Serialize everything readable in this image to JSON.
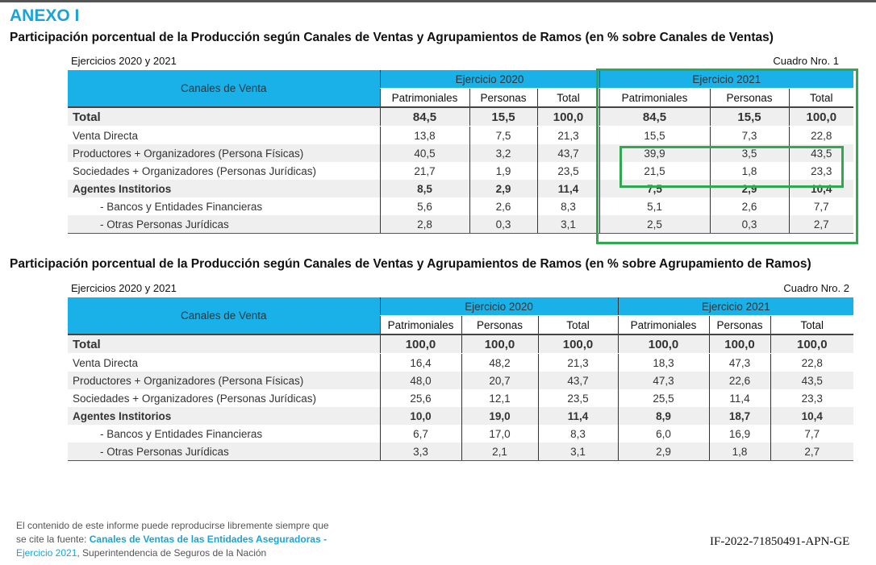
{
  "anexo": "ANEXO I",
  "table1": {
    "heading": "Participación porcentual de la Producción según Canales de Ventas y Agrupamientos de Ramos (en % sobre Canales de Ventas)",
    "ejercicios": "Ejercicios 2020 y 2021",
    "cuadro": "Cuadro Nro. 1",
    "col_label": "Canales de Venta",
    "group_2020": "Ejercicio 2020",
    "group_2021": "Ejercicio 2021",
    "sub_headers": [
      "Patrimoniales",
      "Personas",
      "Total"
    ],
    "rows": [
      {
        "label": "Total",
        "values": [
          "84,5",
          "15,5",
          "100,0",
          "84,5",
          "15,5",
          "100,0"
        ]
      },
      {
        "label": "Venta Directa",
        "values": [
          "13,8",
          "7,5",
          "21,3",
          "15,5",
          "7,3",
          "22,8"
        ]
      },
      {
        "label": "Productores + Organizadores (Persona Físicas)",
        "values": [
          "40,5",
          "3,2",
          "43,7",
          "39,9",
          "3,5",
          "43,5"
        ]
      },
      {
        "label": "Sociedades + Organizadores (Personas Jurídicas)",
        "values": [
          "21,7",
          "1,9",
          "23,5",
          "21,5",
          "1,8",
          "23,3"
        ]
      },
      {
        "label": "Agentes Institorios",
        "values": [
          "8,5",
          "2,9",
          "11,4",
          "7,5",
          "2,9",
          "10,4"
        ]
      },
      {
        "label": "- Bancos y Entidades Financieras",
        "values": [
          "5,6",
          "2,6",
          "8,3",
          "5,1",
          "2,6",
          "7,7"
        ]
      },
      {
        "label": "- Otras Personas Jurídicas",
        "values": [
          "2,8",
          "0,3",
          "3,1",
          "2,5",
          "0,3",
          "2,7"
        ]
      }
    ]
  },
  "table2": {
    "heading": "Participación porcentual de la Producción según Canales de Ventas y Agrupamientos de Ramos (en % sobre Agrupamiento de Ramos)",
    "ejercicios": "Ejercicios 2020 y 2021",
    "cuadro": "Cuadro Nro. 2",
    "col_label": "Canales de Venta",
    "group_2020": "Ejercicio 2020",
    "group_2021": "Ejercicio 2021",
    "sub_headers": [
      "Patrimoniales",
      "Personas",
      "Total"
    ],
    "rows": [
      {
        "label": "Total",
        "values": [
          "100,0",
          "100,0",
          "100,0",
          "100,0",
          "100,0",
          "100,0"
        ]
      },
      {
        "label": "Venta Directa",
        "values": [
          "16,4",
          "48,2",
          "21,3",
          "18,3",
          "47,3",
          "22,8"
        ]
      },
      {
        "label": "Productores + Organizadores (Persona Físicas)",
        "values": [
          "48,0",
          "20,7",
          "43,7",
          "47,3",
          "22,6",
          "43,5"
        ]
      },
      {
        "label": "Sociedades + Organizadores (Personas Jurídicas)",
        "values": [
          "25,6",
          "12,1",
          "23,5",
          "25,5",
          "11,4",
          "23,3"
        ]
      },
      {
        "label": "Agentes Institorios",
        "values": [
          "10,0",
          "19,0",
          "11,4",
          "8,9",
          "18,7",
          "10,4"
        ]
      },
      {
        "label": "- Bancos y Entidades Financieras",
        "values": [
          "6,7",
          "17,0",
          "8,3",
          "6,0",
          "16,9",
          "7,7"
        ]
      },
      {
        "label": "- Otras Personas Jurídicas",
        "values": [
          "3,3",
          "2,1",
          "3,1",
          "2,9",
          "1,8",
          "2,7"
        ]
      }
    ]
  },
  "footer": {
    "line1": "El contenido de este informe puede reproducirse libremente siempre que",
    "line2_pre": "se cite la fuente: ",
    "link1": "Canales de Ventas de las Entidades Aseguradoras -",
    "link2": "Ejercicio 2021",
    "line3_post": ", Superintendencia de Seguros de la Nación"
  },
  "doc_id": "IF-2022-71850491-APN-GE",
  "colors": {
    "accent": "#1ab0e8",
    "highlight_box": "#2fa84f"
  }
}
